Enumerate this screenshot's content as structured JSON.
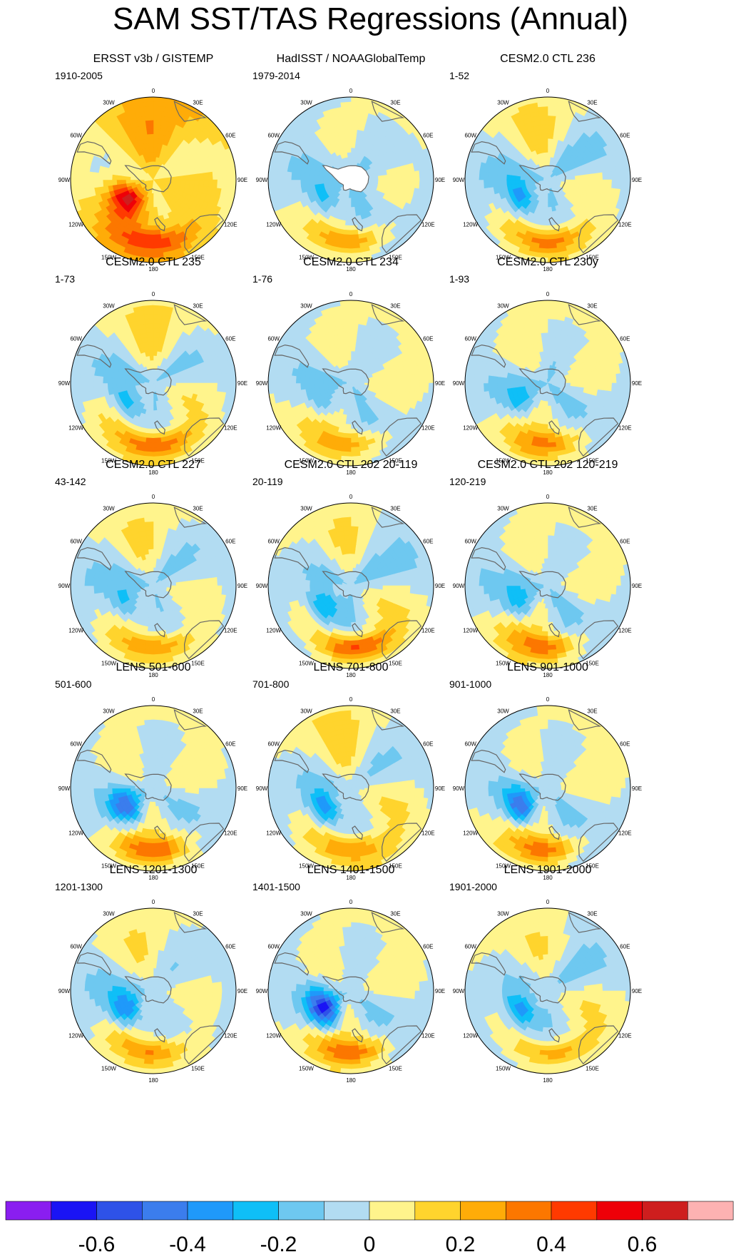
{
  "title": "SAM SST/TAS Regressions (Annual)",
  "longitude_labels": [
    "0",
    "30E",
    "60E",
    "90E",
    "120E",
    "150E",
    "180",
    "150W",
    "120W",
    "90W",
    "60W",
    "30W"
  ],
  "colors": {
    "land_mask": "#ffffff",
    "coast": "#666666"
  },
  "colorbar": {
    "colors": [
      "#8a1ef0",
      "#1a14f5",
      "#2e52e8",
      "#3b7ded",
      "#1f99fa",
      "#0fbff7",
      "#6ec8f0",
      "#b2dcf2",
      "#fff48c",
      "#ffd42d",
      "#ffac08",
      "#fc7700",
      "#ff3a00",
      "#ee0008",
      "#ce1e1e",
      "#fdb2b2"
    ],
    "tick_labels": [
      "-0.6",
      "-0.4",
      "-0.2",
      "0",
      "0.2",
      "0.4",
      "0.6"
    ]
  },
  "panels": [
    {
      "title": "ERSST v3b / GISTEMP",
      "period": "1910-2005",
      "pattern": {
        "base": 0.15,
        "ring": 0.1,
        "ringPhase": 0.5,
        "lobe": 0.12,
        "lobePhase": 1.2,
        "pacA": 0.4,
        "pacB": 0.3,
        "pole": -0.05,
        "antarctica_missing": false
      }
    },
    {
      "title": "HadISST / NOAAGlobalTemp",
      "period": "1979-2014",
      "pattern": {
        "base": -0.02,
        "ring": 0.08,
        "ringPhase": 1.0,
        "lobe": 0.05,
        "lobePhase": 0.4,
        "pacA": -0.25,
        "pacB": 0.3,
        "pole": -0.1,
        "antarctica_missing": true
      }
    },
    {
      "title": "CESM2.0 CTL 236",
      "period": "1-52",
      "pattern": {
        "base": 0.0,
        "ring": 0.12,
        "ringPhase": 0.7,
        "lobe": 0.08,
        "lobePhase": 2.0,
        "pacA": -0.4,
        "pacB": 0.35,
        "pole": -0.08,
        "antarctica_missing": false
      }
    },
    {
      "title": "CESM2.0 CTL 235",
      "period": "1-73",
      "pattern": {
        "base": 0.02,
        "ring": 0.12,
        "ringPhase": 0.3,
        "lobe": 0.07,
        "lobePhase": 1.5,
        "pacA": -0.35,
        "pacB": 0.4,
        "pole": -0.1,
        "antarctica_missing": false
      }
    },
    {
      "title": "CESM2.0 CTL 234",
      "period": "1-76",
      "pattern": {
        "base": 0.0,
        "ring": 0.1,
        "ringPhase": 1.3,
        "lobe": 0.06,
        "lobePhase": 0.2,
        "pacA": -0.2,
        "pacB": 0.25,
        "pole": -0.08,
        "antarctica_missing": false
      }
    },
    {
      "title": "CESM2.0 CTL 230y",
      "period": "1-93",
      "pattern": {
        "base": 0.0,
        "ring": 0.1,
        "ringPhase": 2.1,
        "lobe": 0.07,
        "lobePhase": 0.9,
        "pacA": -0.2,
        "pacB": 0.25,
        "pole": -0.1,
        "antarctica_missing": false
      }
    },
    {
      "title": "CESM2.0 CTL 227",
      "period": "43-142",
      "pattern": {
        "base": 0.0,
        "ring": 0.11,
        "ringPhase": 0.9,
        "lobe": 0.06,
        "lobePhase": 1.8,
        "pacA": -0.25,
        "pacB": 0.3,
        "pole": -0.08,
        "antarctica_missing": false
      }
    },
    {
      "title": "CESM2.0 CTL 202 20-119",
      "period": "20-119",
      "pattern": {
        "base": 0.0,
        "ring": 0.11,
        "ringPhase": 0.1,
        "lobe": 0.07,
        "lobePhase": 2.5,
        "pacA": -0.35,
        "pacB": 0.45,
        "pole": -0.08,
        "antarctica_missing": false
      }
    },
    {
      "title": "CESM2.0 CTL 202 120-219",
      "period": "120-219",
      "pattern": {
        "base": 0.0,
        "ring": 0.11,
        "ringPhase": 1.7,
        "lobe": 0.08,
        "lobePhase": 0.6,
        "pacA": -0.25,
        "pacB": 0.3,
        "pole": -0.08,
        "antarctica_missing": false
      }
    },
    {
      "title": "LENS 501-600",
      "period": "501-600",
      "pattern": {
        "base": 0.0,
        "ring": 0.1,
        "ringPhase": 2.6,
        "lobe": 0.06,
        "lobePhase": 1.1,
        "pacA": -0.42,
        "pacB": 0.3,
        "pole": -0.06,
        "antarctica_missing": false
      }
    },
    {
      "title": "LENS 701-800",
      "period": "701-800",
      "pattern": {
        "base": 0.02,
        "ring": 0.11,
        "ringPhase": 0.6,
        "lobe": 0.07,
        "lobePhase": 2.2,
        "pacA": -0.45,
        "pacB": 0.3,
        "pole": -0.06,
        "antarctica_missing": false
      }
    },
    {
      "title": "LENS 901-1000",
      "period": "901-1000",
      "pattern": {
        "base": 0.0,
        "ring": 0.1,
        "ringPhase": 1.9,
        "lobe": 0.08,
        "lobePhase": 0.3,
        "pacA": -0.48,
        "pacB": 0.3,
        "pole": -0.06,
        "antarctica_missing": false
      }
    },
    {
      "title": "LENS 1201-1300",
      "period": "1201-1300",
      "pattern": {
        "base": 0.0,
        "ring": 0.1,
        "ringPhase": 1.2,
        "lobe": 0.06,
        "lobePhase": 1.6,
        "pacA": -0.42,
        "pacB": 0.28,
        "pole": -0.06,
        "antarctica_missing": false
      }
    },
    {
      "title": "LENS 1401-1500",
      "period": "1401-1500",
      "pattern": {
        "base": 0.0,
        "ring": 0.1,
        "ringPhase": 2.3,
        "lobe": 0.07,
        "lobePhase": 0.8,
        "pacA": -0.6,
        "pacB": 0.3,
        "pole": -0.06,
        "antarctica_missing": false
      }
    },
    {
      "title": "LENS 1901-2000",
      "period": "1901-2000",
      "pattern": {
        "base": 0.0,
        "ring": 0.1,
        "ringPhase": 0.4,
        "lobe": 0.06,
        "lobePhase": 2.8,
        "pacA": -0.42,
        "pacB": 0.28,
        "pole": -0.06,
        "antarctica_missing": false
      }
    }
  ]
}
